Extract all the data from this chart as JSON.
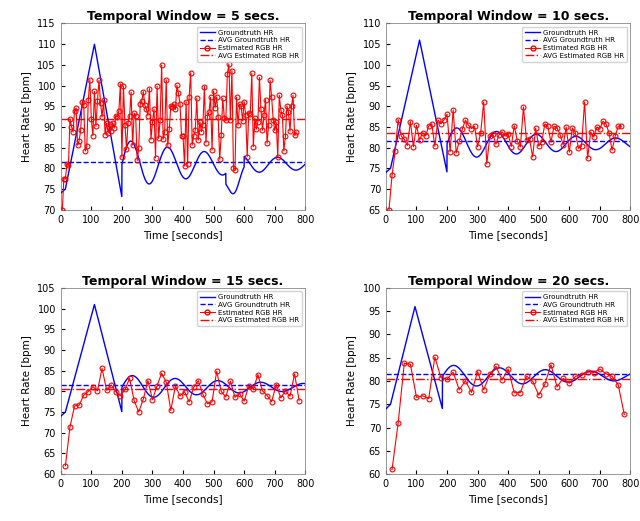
{
  "subplots": [
    {
      "title": "Temporal Window = 5 secs.",
      "ylim": [
        70,
        115
      ],
      "yticks": [
        70,
        75,
        80,
        85,
        90,
        95,
        100,
        105,
        110,
        115
      ],
      "avg_gt": 81.5,
      "avg_est": 92.0
    },
    {
      "title": "Temporal Window = 10 secs.",
      "ylim": [
        65,
        110
      ],
      "yticks": [
        65,
        70,
        75,
        80,
        85,
        90,
        95,
        100,
        105,
        110
      ],
      "avg_gt": 81.5,
      "avg_est": 83.5
    },
    {
      "title": "Temporal Window = 15 secs.",
      "ylim": [
        60,
        105
      ],
      "yticks": [
        60,
        65,
        70,
        75,
        80,
        85,
        90,
        95,
        100,
        105
      ],
      "avg_gt": 81.5,
      "avg_est": 80.5
    },
    {
      "title": "Temporal Window = 20 secs.",
      "ylim": [
        60,
        100
      ],
      "yticks": [
        60,
        65,
        70,
        75,
        80,
        85,
        90,
        95,
        100
      ],
      "avg_gt": 81.5,
      "avg_est": 80.5
    }
  ],
  "xlabel": "Time [seconds]",
  "ylabel": "Heart Rate [bpm]",
  "xlim": [
    0,
    800
  ],
  "xticks": [
    0,
    100,
    200,
    300,
    400,
    500,
    600,
    700,
    800
  ],
  "blue_color": "#0000FF",
  "red_color": "#FF0000",
  "legend_labels": [
    "Groundtruth HR",
    "AVG Groundtruth HR",
    "Estimated RGB HR",
    "AVG Estimated RGB HR"
  ],
  "title_fontsize": 9,
  "label_fontsize": 7.5,
  "tick_fontsize": 7
}
